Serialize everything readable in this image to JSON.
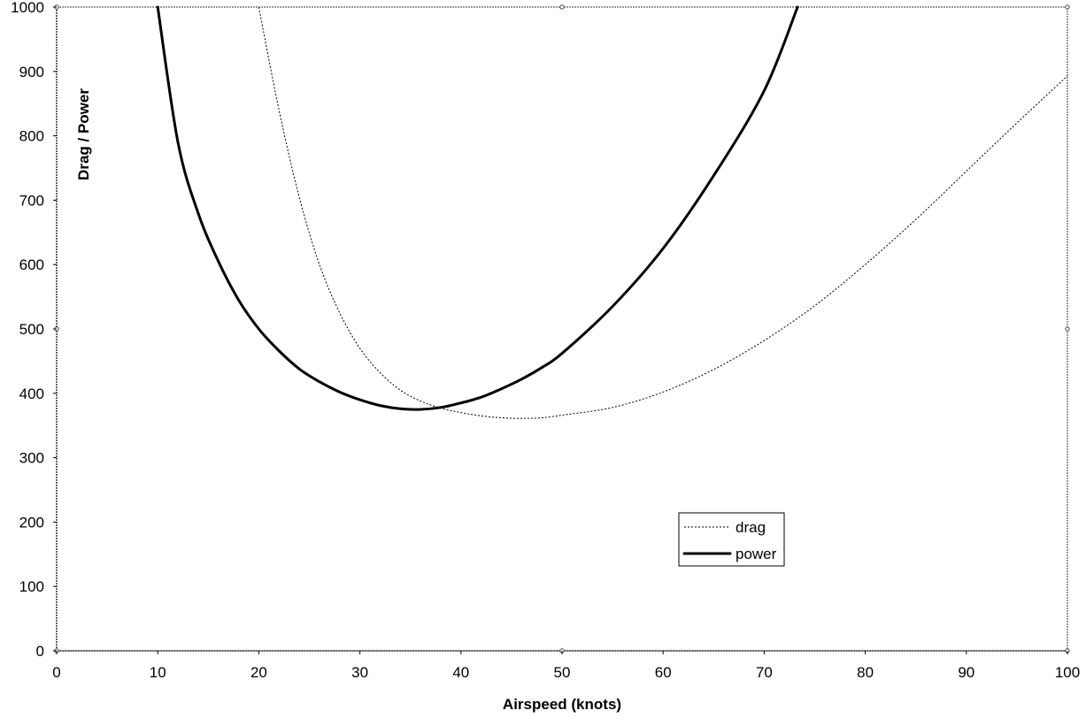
{
  "chart_data": {
    "type": "line",
    "xlabel": "Airspeed (knots)",
    "ylabel": "Drag / Power",
    "xlim": [
      0,
      100
    ],
    "ylim": [
      0,
      1000
    ],
    "xticks": [
      0,
      10,
      20,
      30,
      40,
      50,
      60,
      70,
      80,
      90,
      100
    ],
    "yticks": [
      0,
      100,
      200,
      300,
      400,
      500,
      600,
      700,
      800,
      900,
      1000
    ],
    "grid": false,
    "legend_position": "bottom-right",
    "series": [
      {
        "name": "drag",
        "style": "dotted",
        "x": [
          20,
          22,
          24,
          26,
          28,
          30,
          32,
          34,
          36,
          38,
          40,
          42,
          44,
          46,
          48,
          50,
          55,
          60,
          65,
          70,
          75,
          80,
          85,
          90,
          95,
          100
        ],
        "y": [
          1000,
          840,
          705,
          600,
          525,
          470,
          432,
          405,
          388,
          377,
          370,
          365,
          362,
          361,
          362,
          366,
          378,
          402,
          437,
          482,
          536,
          600,
          670,
          745,
          820,
          893
        ]
      },
      {
        "name": "power",
        "style": "solid-bold",
        "x": [
          10,
          12,
          14,
          16,
          18,
          20,
          22,
          24,
          26,
          28,
          30,
          32,
          34,
          36,
          38,
          40,
          42,
          44,
          46,
          48,
          50,
          55,
          60,
          65,
          70,
          73.3
        ],
        "y": [
          1000,
          790,
          680,
          605,
          545,
          500,
          466,
          438,
          418,
          402,
          390,
          381,
          376,
          375,
          378,
          385,
          394,
          407,
          422,
          440,
          462,
          535,
          625,
          738,
          870,
          1000
        ]
      }
    ]
  }
}
